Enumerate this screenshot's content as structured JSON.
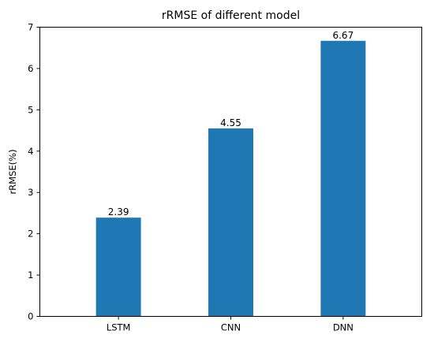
{
  "chart_data": {
    "type": "bar",
    "title": "rRMSE of different model",
    "xlabel": "",
    "ylabel": "rRMSE(%)",
    "categories": [
      "LSTM",
      "CNN",
      "DNN"
    ],
    "values": [
      2.39,
      4.55,
      6.67
    ],
    "data_labels": [
      "2.39",
      "4.55",
      "6.67"
    ],
    "ylim": [
      0,
      7
    ],
    "yticks": [
      0,
      1,
      2,
      3,
      4,
      5,
      6,
      7
    ],
    "grid": false,
    "legend": "none",
    "bar_color": "#1f77b4"
  }
}
